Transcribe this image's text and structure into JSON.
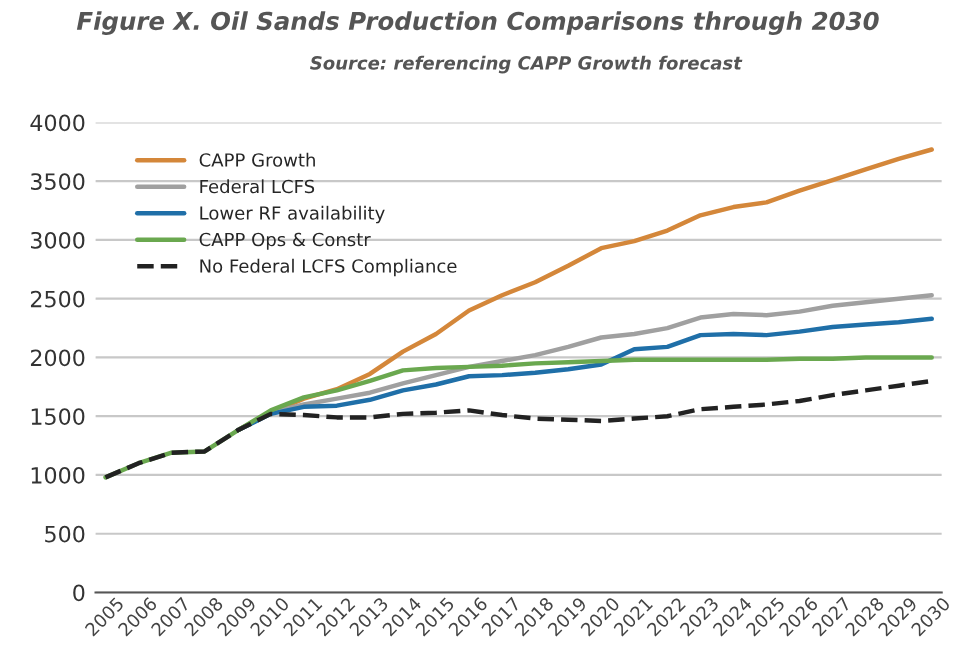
{
  "chart_data": {
    "type": "line",
    "title": "Figure X. Oil Sands Production Comparisons through 2030",
    "subtitle": "Source: referencing CAPP Growth forecast",
    "categories": [
      "2005",
      "2006",
      "2007",
      "2008",
      "2009",
      "2010",
      "2011",
      "2012",
      "2013",
      "2014",
      "2015",
      "2016",
      "2017",
      "2018",
      "2019",
      "2020",
      "2021",
      "2022",
      "2023",
      "2024",
      "2025",
      "2026",
      "2027",
      "2028",
      "2029",
      "2030"
    ],
    "series": [
      {
        "name": "CAPP Growth",
        "color": "#d4873a",
        "values": [
          null,
          null,
          null,
          null,
          1380,
          1530,
          1650,
          1730,
          1860,
          2050,
          2200,
          2400,
          2530,
          2640,
          2780,
          2930,
          2990,
          3080,
          3210,
          3280,
          3320,
          3420,
          3510,
          3600,
          3690,
          3770
        ]
      },
      {
        "name": "Federal LCFS",
        "color": "#a0a0a0",
        "values": [
          null,
          null,
          null,
          null,
          1380,
          1530,
          1600,
          1650,
          1700,
          1780,
          1850,
          1920,
          1970,
          2020,
          2090,
          2170,
          2200,
          2250,
          2340,
          2370,
          2360,
          2390,
          2440,
          2470,
          2500,
          2530
        ]
      },
      {
        "name": "Lower RF availability",
        "color": "#1f6fa8",
        "values": [
          null,
          null,
          null,
          null,
          1380,
          1520,
          1580,
          1590,
          1640,
          1720,
          1770,
          1840,
          1850,
          1870,
          1900,
          1940,
          2070,
          2090,
          2190,
          2200,
          2190,
          2220,
          2260,
          2280,
          2300,
          2330
        ]
      },
      {
        "name": "CAPP Ops & Constr",
        "color": "#6aa84f",
        "values": [
          980,
          1100,
          1190,
          1200,
          1380,
          1550,
          1660,
          1720,
          1800,
          1890,
          1910,
          1920,
          1930,
          1950,
          1960,
          1970,
          1980,
          1980,
          1980,
          1980,
          1980,
          1990,
          1990,
          2000,
          2000,
          2000
        ]
      },
      {
        "name": "No Federal LCFS Compliance",
        "color": "#222222",
        "line_style": "dashed",
        "values": [
          980,
          1100,
          1190,
          1200,
          1380,
          1520,
          1510,
          1490,
          1490,
          1520,
          1530,
          1550,
          1510,
          1480,
          1470,
          1460,
          1480,
          1500,
          1560,
          1580,
          1600,
          1630,
          1680,
          1720,
          1760,
          1800
        ]
      }
    ],
    "ylim": [
      0,
      4000
    ],
    "yticks": [
      0,
      500,
      1000,
      1500,
      2000,
      2500,
      3000,
      3500,
      4000
    ],
    "grid": "y",
    "legend": "top left",
    "marker": "none"
  }
}
